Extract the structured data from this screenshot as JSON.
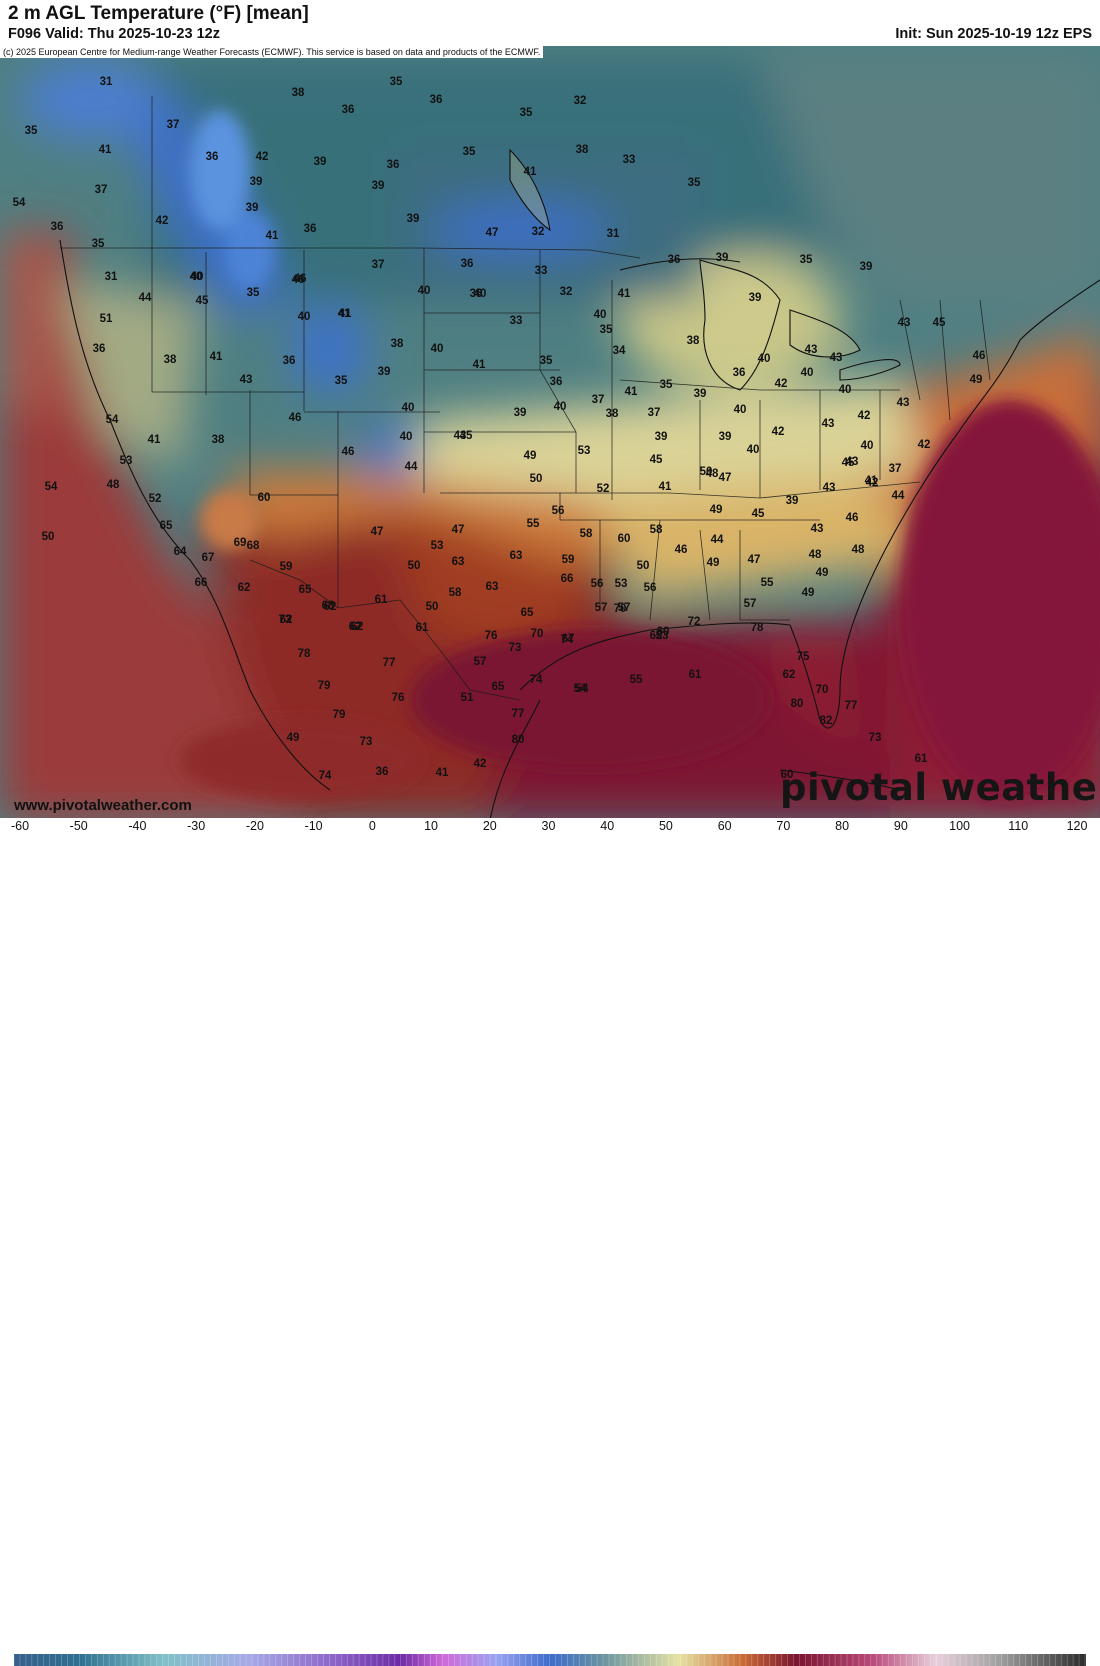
{
  "header": {
    "title": "2 m AGL Temperature (°F) [mean]",
    "valid": "F096 Valid: Thu 2025-10-23 12z",
    "init": "Init: Sun 2025-10-19 12z EPS",
    "copyright": "(c) 2025 European Centre for Medium-range Weather Forecasts (ECMWF). This service is based on data and products of the ECMWF."
  },
  "footer": {
    "website": "www.pivotalweather.com",
    "brand": "pivotal weather"
  },
  "colorbar": {
    "ticks": [
      "-60",
      "-50",
      "-40",
      "-30",
      "-20",
      "-10",
      "0",
      "10",
      "20",
      "30",
      "40",
      "50",
      "60",
      "70",
      "80",
      "90",
      "100",
      "110",
      "120"
    ],
    "colors": {
      "cold": "#3f72c8",
      "cool": "#5e8aa0",
      "mild": "#e8e4a4",
      "warm": "#c75a2c",
      "hot": "#7c1428",
      "very_hot": "#b84878"
    }
  },
  "values": [
    "31",
    "35",
    "38",
    "35",
    "36",
    "32",
    "36",
    "37",
    "41",
    "35",
    "36",
    "42",
    "39",
    "39",
    "36",
    "35",
    "38",
    "33",
    "39",
    "39",
    "41",
    "35",
    "37",
    "54",
    "42",
    "39",
    "36",
    "41",
    "36",
    "47",
    "32",
    "31",
    "35",
    "40",
    "46",
    "40",
    "37",
    "36",
    "33",
    "32",
    "36",
    "39",
    "35",
    "39",
    "41",
    "31",
    "40",
    "46",
    "40",
    "40",
    "36",
    "33",
    "41",
    "39",
    "44",
    "45",
    "35",
    "40",
    "41",
    "38",
    "34",
    "35",
    "38",
    "36",
    "41",
    "35",
    "40",
    "40",
    "39",
    "51",
    "36",
    "38",
    "41",
    "35",
    "40",
    "43",
    "43",
    "43",
    "36",
    "41",
    "35",
    "39",
    "42",
    "37",
    "45",
    "46",
    "49",
    "43",
    "39",
    "40",
    "38",
    "40",
    "39",
    "36",
    "43",
    "40",
    "37",
    "40",
    "46",
    "42",
    "43",
    "54",
    "40",
    "43",
    "39",
    "45",
    "42",
    "44",
    "53",
    "41",
    "38",
    "46",
    "40",
    "42",
    "48",
    "45",
    "37",
    "43",
    "44",
    "50",
    "52",
    "49",
    "48",
    "54",
    "53",
    "40",
    "47",
    "41",
    "50",
    "39",
    "45",
    "43",
    "42",
    "49",
    "45",
    "41",
    "43",
    "47",
    "46",
    "52",
    "47",
    "56",
    "59",
    "55",
    "58",
    "60",
    "53",
    "50",
    "58",
    "60",
    "59",
    "63",
    "65",
    "61",
    "63",
    "56",
    "53",
    "50",
    "46",
    "44",
    "47",
    "48",
    "50",
    "48",
    "49",
    "49",
    "62",
    "49",
    "56",
    "55",
    "57",
    "65",
    "57",
    "64",
    "62",
    "66",
    "67",
    "68",
    "58",
    "62",
    "61",
    "63",
    "65",
    "60",
    "57",
    "69",
    "66",
    "62",
    "70",
    "73",
    "68",
    "62",
    "78",
    "67",
    "76",
    "77",
    "79",
    "57",
    "73",
    "74",
    "73",
    "51",
    "61",
    "55",
    "54",
    "76",
    "77",
    "65",
    "74",
    "78",
    "75",
    "70",
    "72",
    "62",
    "70",
    "62",
    "79",
    "80",
    "82",
    "77",
    "49",
    "80",
    "53",
    "50",
    "73",
    "54",
    "61",
    "60",
    "74",
    "41",
    "36",
    "42"
  ],
  "markers": [
    "31",
    "35",
    "38",
    "35",
    "36",
    "32",
    "36",
    "37",
    "41",
    "35",
    "36",
    "42",
    "39",
    "39",
    "36",
    "35",
    "38",
    "33",
    "39",
    "39",
    "41",
    "35",
    "37",
    "54",
    "42",
    "39",
    "36",
    "41",
    "36",
    "47",
    "32",
    "31",
    "35",
    "40",
    "46",
    "40",
    "37",
    "36",
    "33",
    "32",
    "36",
    "39",
    "35",
    "39",
    "41",
    "31",
    "40",
    "46",
    "40",
    "40",
    "36",
    "33",
    "41",
    "39",
    "44",
    "45",
    "35",
    "40",
    "41",
    "38",
    "34",
    "35",
    "38",
    "36",
    "41",
    "35",
    "40",
    "40",
    "39",
    "51",
    "36",
    "38",
    "41",
    "35",
    "40",
    "43",
    "43",
    "43",
    "36",
    "41",
    "35",
    "39",
    "42",
    "37",
    "45",
    "46",
    "49",
    "43",
    "39",
    "40",
    "38",
    "40",
    "39",
    "36",
    "43",
    "40",
    "37",
    "40",
    "46",
    "42",
    "43",
    "54",
    "40",
    "43",
    "39",
    "45",
    "42",
    "44",
    "53",
    "41",
    "38",
    "46",
    "40",
    "42",
    "48",
    "45",
    "37",
    "43",
    "44",
    "50",
    "52",
    "49",
    "48",
    "54",
    "53",
    "40",
    "47",
    "41",
    "50",
    "39",
    "45",
    "43",
    "42",
    "49",
    "45",
    "41",
    "43",
    "47",
    "46",
    "52",
    "47",
    "56",
    "59",
    "55",
    "58",
    "60",
    "53",
    "50",
    "58",
    "60",
    "59",
    "63",
    "65",
    "61",
    "63",
    "56",
    "53",
    "50",
    "46",
    "44",
    "47",
    "48",
    "50",
    "48",
    "49",
    "49",
    "62",
    "49",
    "56",
    "55",
    "57",
    "65",
    "57",
    "64",
    "62",
    "66",
    "67",
    "68",
    "58",
    "62",
    "61",
    "63",
    "65",
    "60",
    "57",
    "69",
    "66",
    "62",
    "70",
    "73",
    "68",
    "62",
    "78",
    "67",
    "76",
    "77",
    "79",
    "57",
    "73",
    "74",
    "73",
    "51",
    "61",
    "55",
    "54",
    "76",
    "77",
    "65",
    "74",
    "78",
    "75",
    "70",
    "72",
    "62",
    "70",
    "62",
    "79",
    "80",
    "82",
    "77",
    "49",
    "80",
    "53",
    "50",
    "73",
    "54",
    "61",
    "60",
    "74",
    "41",
    "36",
    "42"
  ]
}
